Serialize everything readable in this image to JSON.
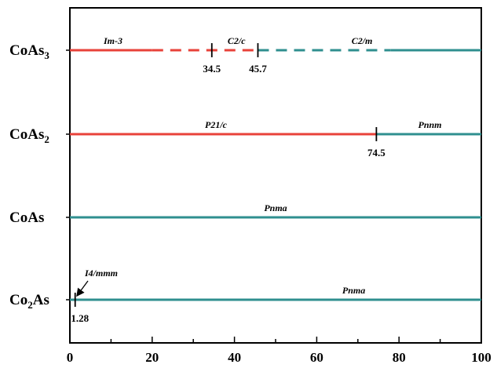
{
  "chart_data": {
    "type": "phase-diagram",
    "xlim": [
      0,
      100
    ],
    "x_ticks": [
      0,
      20,
      40,
      60,
      80,
      100
    ],
    "colors": {
      "red": "#e8423a",
      "teal": "#2f8f8f",
      "axis": "#000000"
    },
    "rows": [
      {
        "name": "CoAs",
        "subscript": "3",
        "name_position": "prefix",
        "segments": [
          {
            "start": 0,
            "end": 20,
            "color": "red",
            "style": "solid"
          },
          {
            "start": 20,
            "end": 45.7,
            "color": "red",
            "style": "dashed"
          },
          {
            "start": 45.7,
            "end": 78,
            "color": "teal",
            "style": "dashed"
          },
          {
            "start": 78,
            "end": 100,
            "color": "teal",
            "style": "solid"
          }
        ],
        "phase_labels": [
          {
            "text": "Im-3",
            "x": 10.5
          },
          {
            "text": "C2/c",
            "x": 40.5
          },
          {
            "text": "C2/m",
            "x": 71
          }
        ],
        "transitions": [
          {
            "x": 34.5,
            "label": "34.5"
          },
          {
            "x": 45.7,
            "label": "45.7"
          }
        ]
      },
      {
        "name": "CoAs",
        "subscript": "2",
        "name_position": "prefix",
        "segments": [
          {
            "start": 0,
            "end": 74.5,
            "color": "red",
            "style": "solid"
          },
          {
            "start": 74.5,
            "end": 100,
            "color": "teal",
            "style": "solid"
          }
        ],
        "phase_labels": [
          {
            "text": "P21/c",
            "x": 35.5
          },
          {
            "text": "Pnnm",
            "x": 87.5
          }
        ],
        "transitions": [
          {
            "x": 74.5,
            "label": "74.5"
          }
        ]
      },
      {
        "name": "CoAs",
        "subscript": "",
        "name_position": "prefix",
        "segments": [
          {
            "start": 0,
            "end": 100,
            "color": "teal",
            "style": "solid"
          }
        ],
        "phase_labels": [
          {
            "text": "Pnma",
            "x": 50
          }
        ],
        "transitions": []
      },
      {
        "name": "As",
        "prefix": "Co",
        "subscript": "2",
        "name_position": "infix",
        "segments": [
          {
            "start": 0,
            "end": 100,
            "color": "teal",
            "style": "solid"
          }
        ],
        "phase_labels": [
          {
            "text": "Pnma",
            "x": 69
          }
        ],
        "transitions": [
          {
            "x": 1.28,
            "label": "1.28"
          }
        ],
        "annotation": {
          "text": "I4/mmm",
          "points_to": 1.28
        }
      }
    ]
  }
}
